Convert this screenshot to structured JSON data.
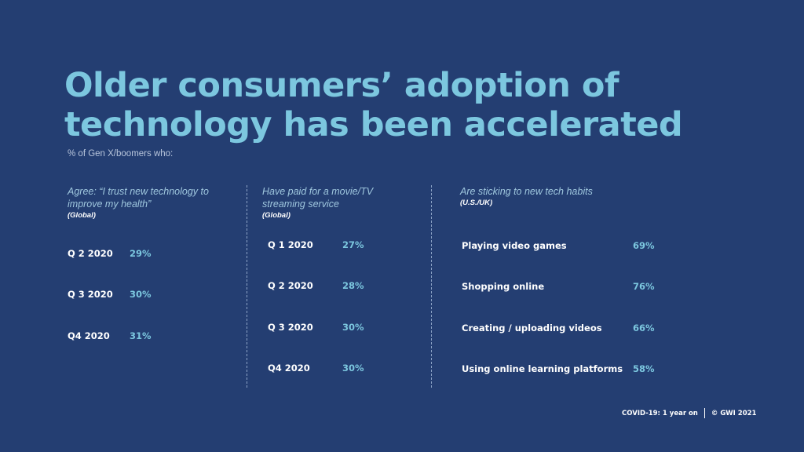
{
  "title": {
    "line1": "Older consumers’ adoption of",
    "line2": "technology has been accelerated"
  },
  "subtitle": "% of Gen X/boomers who:",
  "columns": [
    {
      "heading_lines": [
        "Agree: “I trust new technology to",
        "improve my health”"
      ],
      "region": "(Global)",
      "rows": [
        {
          "label": "Q 2 2020",
          "value": "29%"
        },
        {
          "label": "Q 3 2020",
          "value": "30%"
        },
        {
          "label": "Q4 2020",
          "value": "31%"
        }
      ]
    },
    {
      "heading_lines": [
        "Have paid for a movie/TV",
        "streaming service"
      ],
      "region": "(Global)",
      "rows": [
        {
          "label": "Q 1 2020",
          "value": "27%"
        },
        {
          "label": "Q 2 2020",
          "value": "28%"
        },
        {
          "label": "Q 3 2020",
          "value": "30%"
        },
        {
          "label": "Q4 2020",
          "value": "30%"
        }
      ]
    },
    {
      "heading_lines": [
        "Are sticking to new tech habits"
      ],
      "region": "(U.S./UK)",
      "rows": [
        {
          "label": "Playing video games",
          "value": "69%"
        },
        {
          "label": "Shopping online",
          "value": "76%"
        },
        {
          "label": "Creating / uploading videos",
          "value": "66%"
        },
        {
          "label": "Using online learning platforms",
          "value": "58%"
        }
      ]
    }
  ],
  "footer": {
    "report": "COVID-19: 1 year on",
    "copyright": "© GWI 2021"
  }
}
